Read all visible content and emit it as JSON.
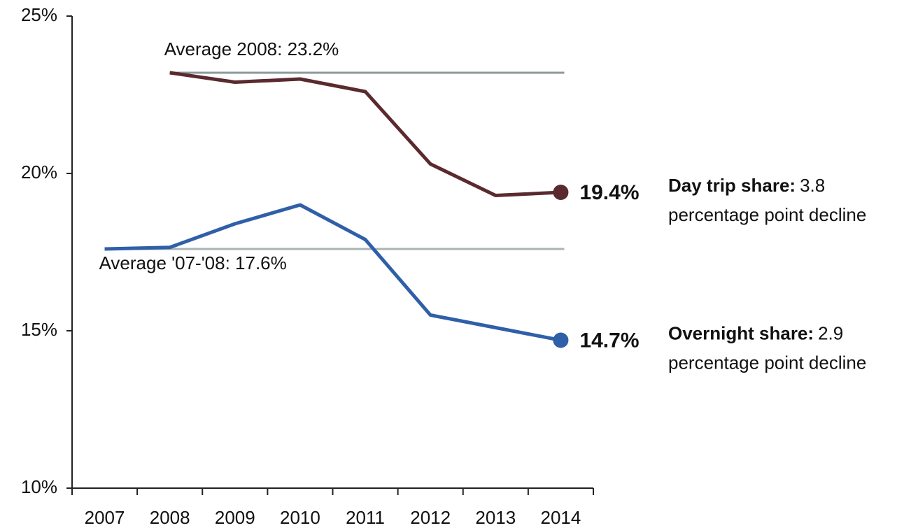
{
  "chart_data": {
    "type": "line",
    "categories": [
      "2007",
      "2008",
      "2009",
      "2010",
      "2011",
      "2012",
      "2013",
      "2014"
    ],
    "ylim": [
      10,
      25
    ],
    "yticks": [
      {
        "value": 10,
        "label": "10%"
      },
      {
        "value": 15,
        "label": "15%"
      },
      {
        "value": 20,
        "label": "20%"
      },
      {
        "value": 25,
        "label": "25%"
      }
    ],
    "series": [
      {
        "color": "#5a2a2e",
        "values": [
          null,
          23.2,
          22.9,
          23.0,
          22.6,
          20.3,
          19.3,
          19.4
        ],
        "value_labels": [
          null,
          null,
          null,
          null,
          null,
          null,
          null,
          "19.4%"
        ],
        "note_title": "Day trip share:",
        "note_value": 3.8,
        "note_text": "percentage point decline"
      },
      {
        "color": "#2f5fa8",
        "values": [
          17.6,
          17.65,
          18.4,
          19.0,
          17.9,
          15.5,
          15.1,
          14.7
        ],
        "value_labels": [
          null,
          null,
          null,
          null,
          null,
          null,
          null,
          "14.7%"
        ],
        "note_title": "Overnight share:",
        "note_value": 2.9,
        "note_text": "percentage point decline"
      }
    ],
    "reference_lines": [
      {
        "value": 23.2,
        "from": "2008",
        "label": "Average 2008: 23.2%",
        "label_position": "above",
        "color": "#8c9a9a"
      },
      {
        "value": 17.6,
        "from": "2007",
        "label": "Average '07-'08: 17.6%",
        "label_position": "below",
        "color": "#a9b4b4"
      }
    ]
  }
}
